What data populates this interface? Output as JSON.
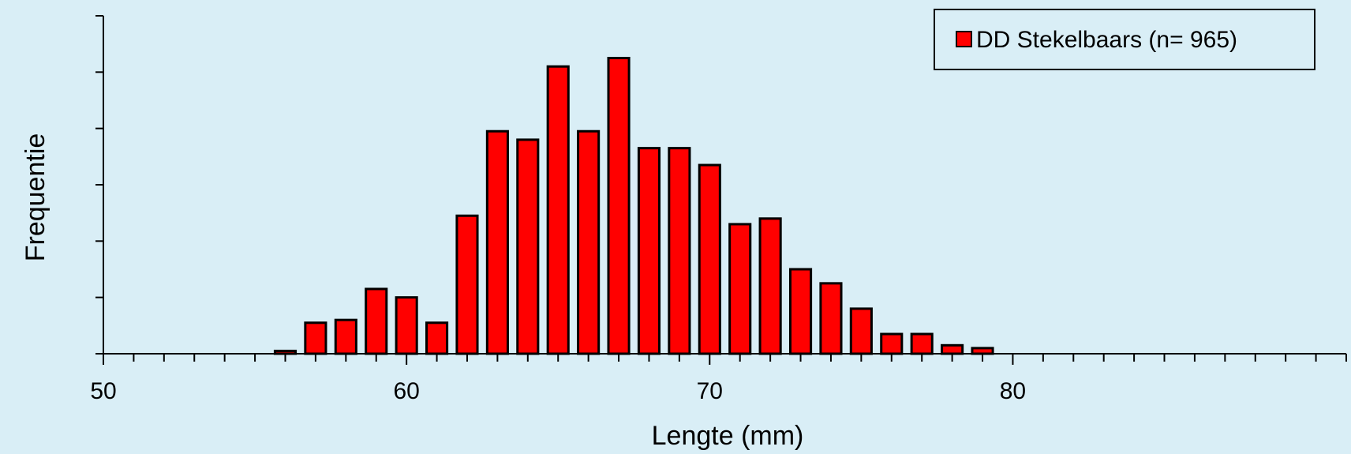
{
  "chart_data": {
    "type": "bar",
    "xlabel": "Lengte (mm)",
    "ylabel": "Frequentie",
    "xlim": [
      50,
      91
    ],
    "ylim": [
      0,
      120
    ],
    "x_ticks": [
      50,
      60,
      70,
      80
    ],
    "y_axis_tick_labels_shown": false,
    "grid": false,
    "legend_position": "top-right",
    "series": [
      {
        "name": "DD Stekelbaars (n= 965)",
        "color": "#ff0000",
        "x": [
          56,
          57,
          58,
          59,
          60,
          61,
          62,
          63,
          64,
          65,
          66,
          67,
          68,
          69,
          70,
          71,
          72,
          73,
          74,
          75,
          76,
          77,
          78,
          79
        ],
        "values": [
          1,
          11,
          12,
          23,
          20,
          11,
          49,
          79,
          76,
          102,
          79,
          105,
          73,
          73,
          67,
          46,
          48,
          30,
          25,
          16,
          7,
          7,
          3,
          2
        ]
      }
    ]
  },
  "colors": {
    "background": "#d9eef6",
    "bar_fill": "#ff0000",
    "axis": "#000000"
  }
}
